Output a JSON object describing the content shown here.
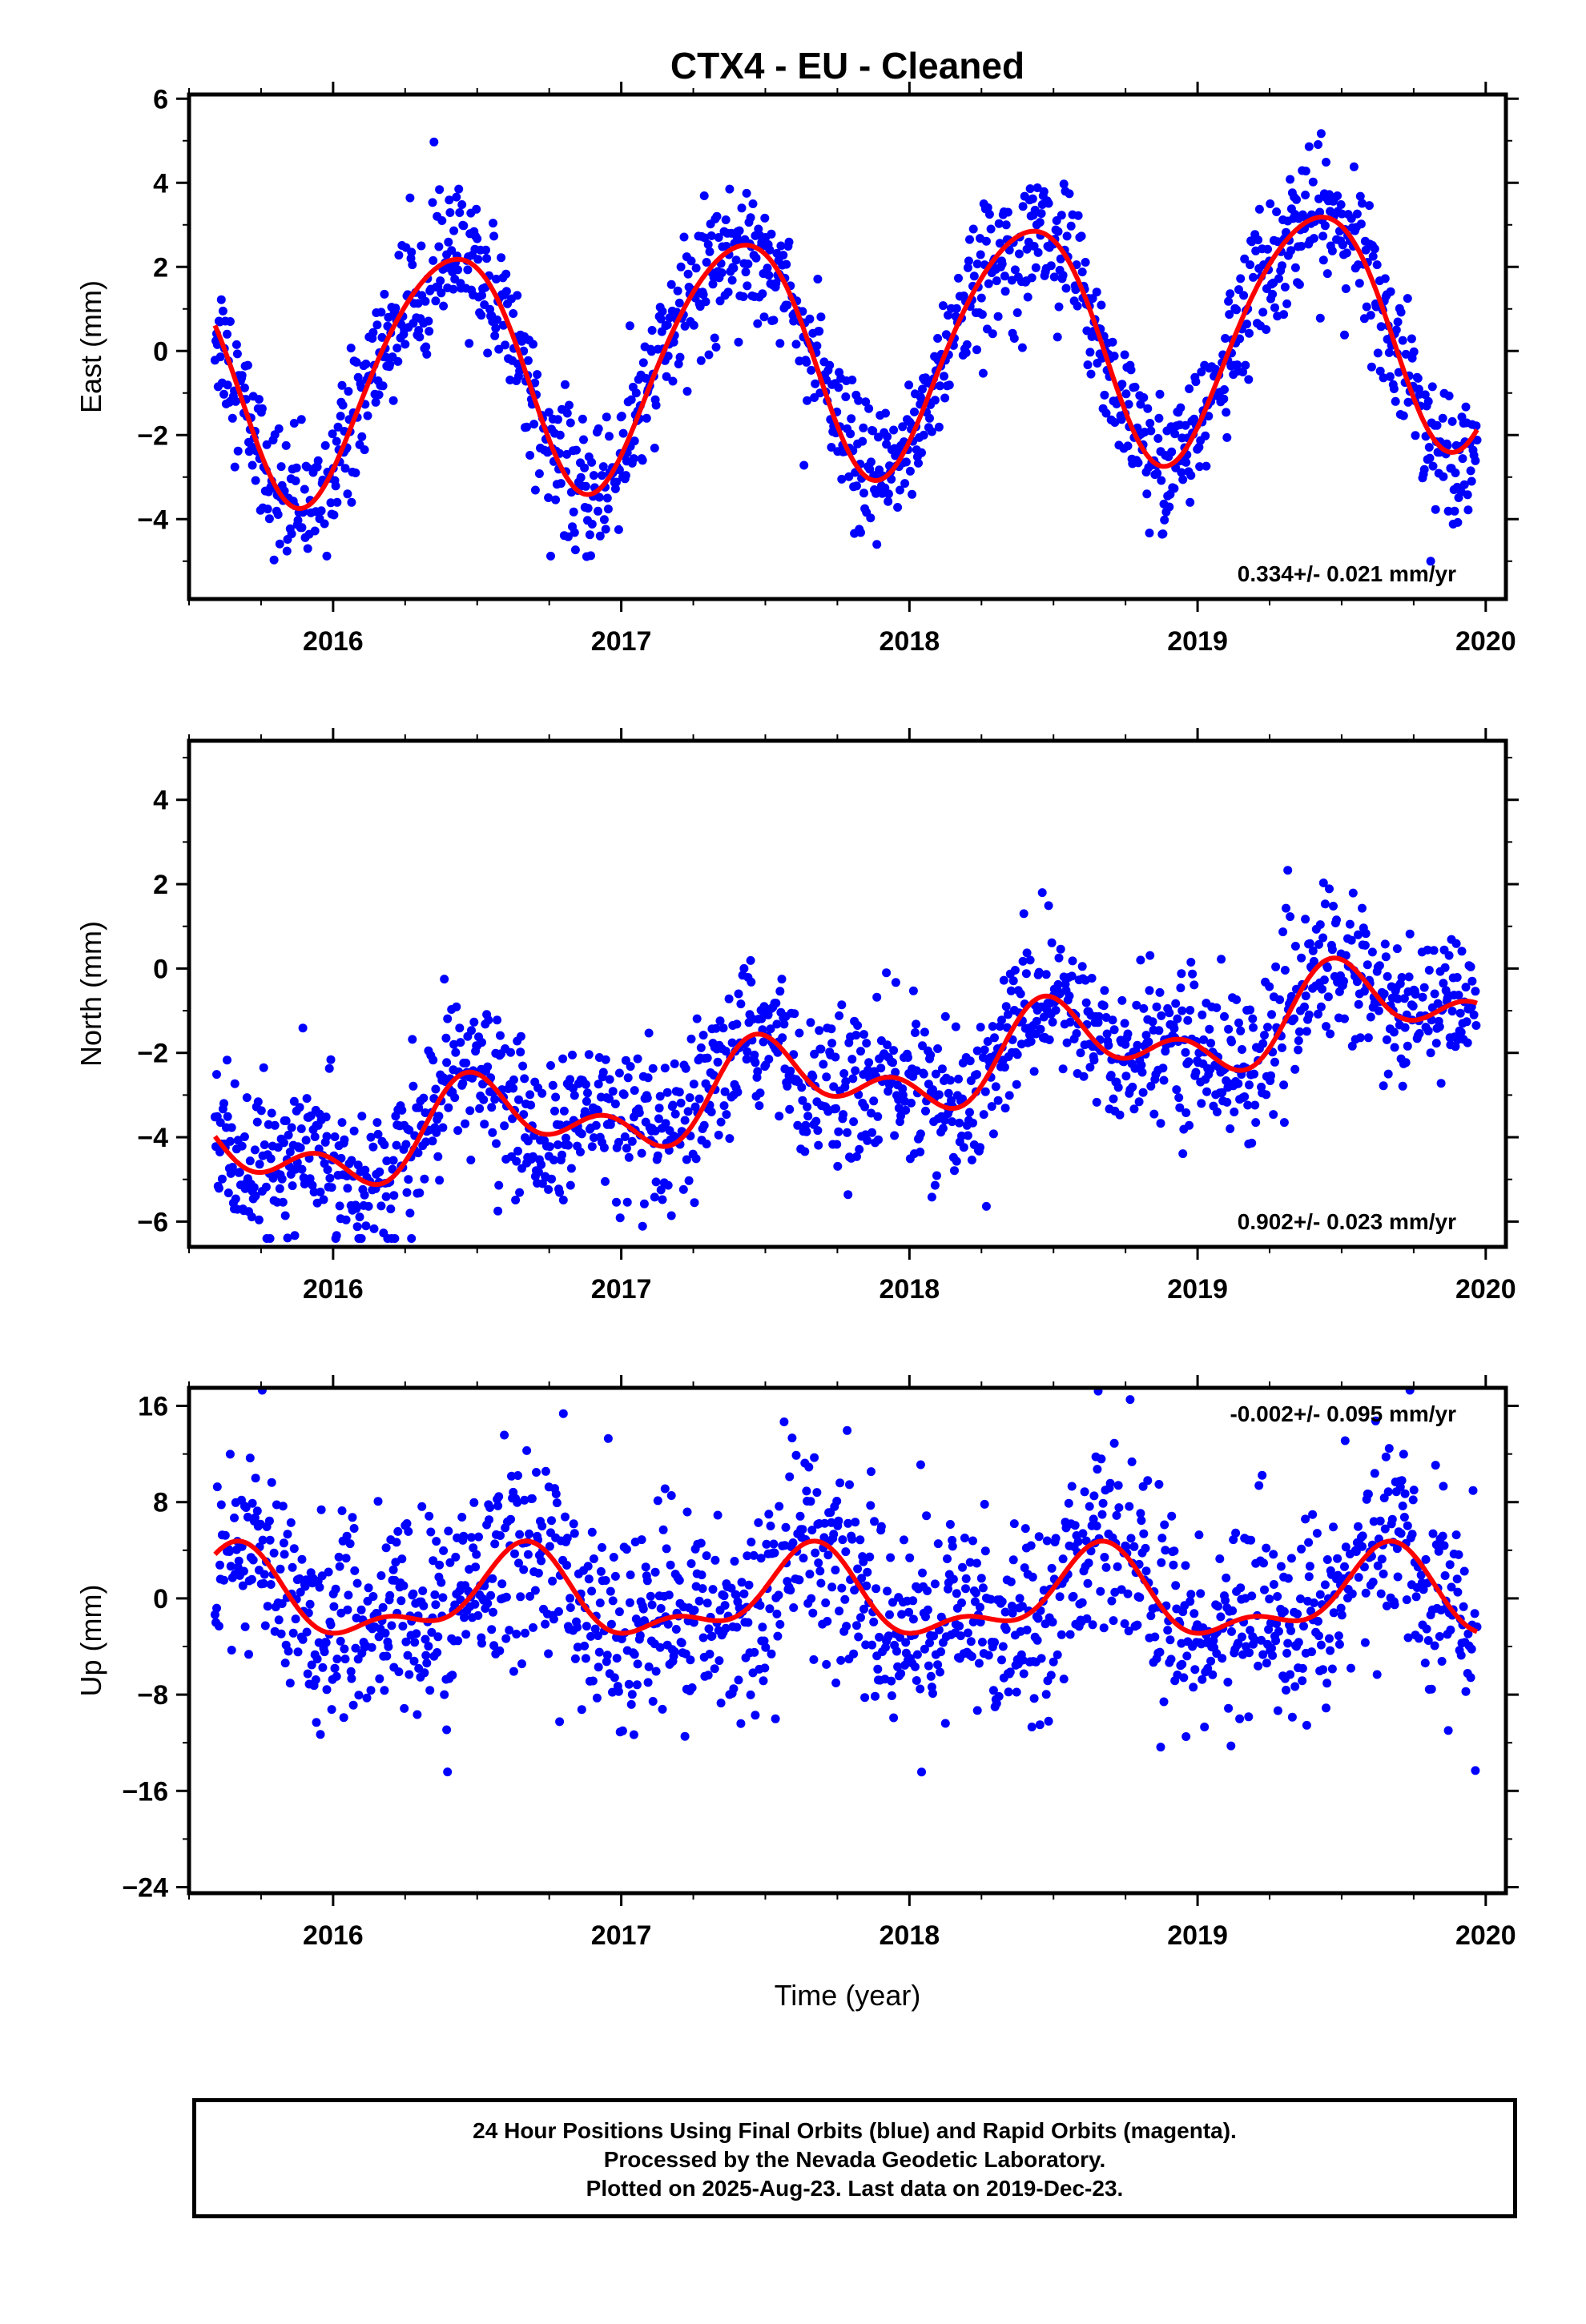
{
  "chart_data": [
    {
      "type": "scatter",
      "title": "CTX4  - EU - Cleaned",
      "ylabel": "East (mm)",
      "xlabel": "",
      "xlim": [
        2015.5,
        2020.07
      ],
      "ylim": [
        -5.9,
        6.1
      ],
      "xticks": [
        "2016",
        "2017",
        "2018",
        "2019",
        "2020"
      ],
      "yticks": [
        "−4",
        "−2",
        "0",
        "2",
        "4",
        "6"
      ],
      "rate_label": "0.334+/- 0.021 mm/yr",
      "grid": false,
      "series": [],
      "model": {
        "linear_rate": 0.334,
        "offset": 0.0,
        "annual_amp": 2.85,
        "annual_peak": 2016.4,
        "semiannual_amp": 0.3,
        "semiannual_peak": 2016.1,
        "noise": 0.8
      },
      "data_start": 2015.59,
      "data_end": 2019.97,
      "color_points": "#0000ff",
      "color_line": "#ff0000"
    },
    {
      "type": "scatter",
      "title": "",
      "ylabel": "North (mm)",
      "xlabel": "",
      "xlim": [
        2015.5,
        2020.07
      ],
      "ylim": [
        -6.6,
        5.4
      ],
      "xticks": [
        "2016",
        "2017",
        "2018",
        "2019",
        "2020"
      ],
      "yticks": [
        "−6",
        "−4",
        "−2",
        "0",
        "2",
        "4"
      ],
      "rate_label": "0.902+/- 0.023 mm/yr",
      "grid": false,
      "series": [],
      "model": {
        "linear_rate": 0.902,
        "offset": -2.6,
        "annual_amp": 0.8,
        "annual_peak": 2016.52,
        "semiannual_amp": 0.6,
        "semiannual_peak": 2015.95,
        "noise": 0.9
      },
      "data_start": 2015.59,
      "data_end": 2019.97,
      "color_points": "#0000ff",
      "color_line": "#ff0000"
    },
    {
      "type": "scatter",
      "title": "",
      "ylabel": "Up (mm)",
      "xlabel": "Time (year)",
      "xlim": [
        2015.5,
        2020.07
      ],
      "ylim": [
        -24.5,
        17.5
      ],
      "xticks": [
        "2016",
        "2017",
        "2018",
        "2019",
        "2020"
      ],
      "yticks": [
        "−24",
        "−16",
        "−8",
        "0",
        "8",
        "16"
      ],
      "rate_label": "-0.002+/- 0.095 mm/yr",
      "grid": false,
      "series": [],
      "model": {
        "linear_rate": -0.002,
        "offset": 0.0,
        "annual_amp": 3.2,
        "annual_peak": 2016.65,
        "semiannual_amp": 1.6,
        "semiannual_peak": 2016.18,
        "noise": 4.2
      },
      "data_start": 2015.59,
      "data_end": 2019.97,
      "color_points": "#0000ff",
      "color_line": "#ff0000"
    }
  ],
  "footer": {
    "line1": "24 Hour Positions Using Final Orbits (blue) and Rapid Orbits (magenta).",
    "line2": "Processed by the Nevada Geodetic Laboratory.",
    "line3": "Plotted on 2025-Aug-23. Last data on 2019-Dec-23."
  }
}
